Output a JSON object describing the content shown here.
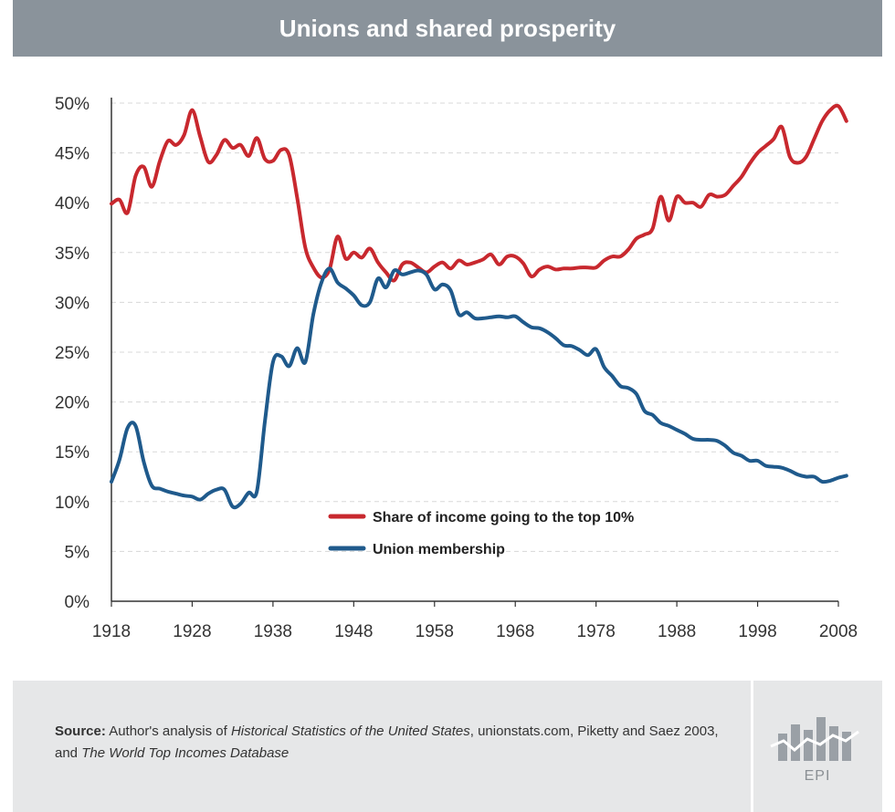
{
  "header": {
    "title": "Unions and shared prosperity"
  },
  "chart_data": {
    "type": "line",
    "title": "Unions and shared prosperity",
    "xlabel": "",
    "ylabel": "",
    "xlim": [
      1918,
      2008
    ],
    "ylim": [
      0,
      50
    ],
    "x_ticks": [
      "1918",
      "1928",
      "1938",
      "1948",
      "1958",
      "1968",
      "1978",
      "1988",
      "1998",
      "2008"
    ],
    "y_ticks": [
      "0%",
      "5%",
      "10%",
      "15%",
      "20%",
      "25%",
      "30%",
      "35%",
      "40%",
      "45%",
      "50%"
    ],
    "grid": "horizontal-dashed",
    "legend_position": "center",
    "series": [
      {
        "name": "Share of income going to the top 10%",
        "color": "#c8282e",
        "points": [
          [
            1918,
            39.9
          ],
          [
            1919,
            40.3
          ],
          [
            1920,
            39.0
          ],
          [
            1921,
            42.7
          ],
          [
            1922,
            43.6
          ],
          [
            1923,
            41.6
          ],
          [
            1924,
            44.2
          ],
          [
            1925,
            46.2
          ],
          [
            1926,
            45.8
          ],
          [
            1927,
            46.8
          ],
          [
            1928,
            49.3
          ],
          [
            1929,
            46.6
          ],
          [
            1930,
            44.1
          ],
          [
            1931,
            44.8
          ],
          [
            1932,
            46.3
          ],
          [
            1933,
            45.5
          ],
          [
            1934,
            45.8
          ],
          [
            1935,
            44.7
          ],
          [
            1936,
            46.5
          ],
          [
            1937,
            44.4
          ],
          [
            1938,
            44.2
          ],
          [
            1939,
            45.3
          ],
          [
            1940,
            44.8
          ],
          [
            1941,
            40.5
          ],
          [
            1942,
            35.5
          ],
          [
            1943,
            33.5
          ],
          [
            1944,
            32.5
          ],
          [
            1945,
            33.3
          ],
          [
            1946,
            36.6
          ],
          [
            1947,
            34.4
          ],
          [
            1948,
            35.0
          ],
          [
            1949,
            34.5
          ],
          [
            1950,
            35.4
          ],
          [
            1951,
            34.0
          ],
          [
            1952,
            33.0
          ],
          [
            1953,
            32.2
          ],
          [
            1954,
            33.8
          ],
          [
            1955,
            34.0
          ],
          [
            1956,
            33.5
          ],
          [
            1957,
            33.0
          ],
          [
            1958,
            33.6
          ],
          [
            1959,
            34.0
          ],
          [
            1960,
            33.4
          ],
          [
            1961,
            34.2
          ],
          [
            1962,
            33.8
          ],
          [
            1963,
            34.0
          ],
          [
            1964,
            34.3
          ],
          [
            1965,
            34.8
          ],
          [
            1966,
            33.8
          ],
          [
            1967,
            34.6
          ],
          [
            1968,
            34.6
          ],
          [
            1969,
            33.9
          ],
          [
            1970,
            32.6
          ],
          [
            1971,
            33.3
          ],
          [
            1972,
            33.6
          ],
          [
            1973,
            33.3
          ],
          [
            1974,
            33.4
          ],
          [
            1975,
            33.4
          ],
          [
            1976,
            33.5
          ],
          [
            1977,
            33.5
          ],
          [
            1978,
            33.5
          ],
          [
            1979,
            34.2
          ],
          [
            1980,
            34.6
          ],
          [
            1981,
            34.6
          ],
          [
            1982,
            35.3
          ],
          [
            1983,
            36.4
          ],
          [
            1984,
            36.8
          ],
          [
            1985,
            37.4
          ],
          [
            1986,
            40.6
          ],
          [
            1987,
            38.2
          ],
          [
            1988,
            40.6
          ],
          [
            1989,
            40.0
          ],
          [
            1990,
            40.0
          ],
          [
            1991,
            39.6
          ],
          [
            1992,
            40.8
          ],
          [
            1993,
            40.6
          ],
          [
            1994,
            40.8
          ],
          [
            1995,
            41.7
          ],
          [
            1996,
            42.6
          ],
          [
            1997,
            43.9
          ],
          [
            1998,
            45.0
          ],
          [
            1999,
            45.7
          ],
          [
            2000,
            46.4
          ],
          [
            2001,
            47.6
          ],
          [
            2002,
            44.6
          ],
          [
            2003,
            44.0
          ],
          [
            2004,
            44.6
          ],
          [
            2005,
            46.4
          ],
          [
            2006,
            48.2
          ],
          [
            2007,
            49.3
          ],
          [
            2008,
            49.7
          ],
          [
            2009,
            48.2
          ]
        ]
      },
      {
        "name": "Union membership",
        "color": "#1f5a8c",
        "points": [
          [
            1918,
            12.0
          ],
          [
            1919,
            14.2
          ],
          [
            1920,
            17.4
          ],
          [
            1921,
            17.6
          ],
          [
            1922,
            14.0
          ],
          [
            1923,
            11.6
          ],
          [
            1924,
            11.3
          ],
          [
            1925,
            11.0
          ],
          [
            1926,
            10.8
          ],
          [
            1927,
            10.6
          ],
          [
            1928,
            10.5
          ],
          [
            1929,
            10.2
          ],
          [
            1930,
            10.8
          ],
          [
            1931,
            11.2
          ],
          [
            1932,
            11.2
          ],
          [
            1933,
            9.5
          ],
          [
            1934,
            9.8
          ],
          [
            1935,
            10.9
          ],
          [
            1936,
            11.0
          ],
          [
            1937,
            18.0
          ],
          [
            1938,
            24.0
          ],
          [
            1939,
            24.6
          ],
          [
            1940,
            23.6
          ],
          [
            1941,
            25.4
          ],
          [
            1942,
            24.0
          ],
          [
            1943,
            28.8
          ],
          [
            1944,
            32.0
          ],
          [
            1945,
            33.4
          ],
          [
            1946,
            32.0
          ],
          [
            1947,
            31.4
          ],
          [
            1948,
            30.7
          ],
          [
            1949,
            29.7
          ],
          [
            1950,
            30.0
          ],
          [
            1951,
            32.4
          ],
          [
            1952,
            31.5
          ],
          [
            1953,
            33.2
          ],
          [
            1954,
            32.8
          ],
          [
            1955,
            33.0
          ],
          [
            1956,
            33.2
          ],
          [
            1957,
            32.8
          ],
          [
            1958,
            31.3
          ],
          [
            1959,
            31.8
          ],
          [
            1960,
            31.2
          ],
          [
            1961,
            28.8
          ],
          [
            1962,
            29.0
          ],
          [
            1963,
            28.4
          ],
          [
            1964,
            28.4
          ],
          [
            1965,
            28.5
          ],
          [
            1966,
            28.6
          ],
          [
            1967,
            28.5
          ],
          [
            1968,
            28.6
          ],
          [
            1969,
            28.0
          ],
          [
            1970,
            27.5
          ],
          [
            1971,
            27.4
          ],
          [
            1972,
            27.0
          ],
          [
            1973,
            26.4
          ],
          [
            1974,
            25.7
          ],
          [
            1975,
            25.6
          ],
          [
            1976,
            25.2
          ],
          [
            1977,
            24.7
          ],
          [
            1978,
            25.3
          ],
          [
            1979,
            23.5
          ],
          [
            1980,
            22.6
          ],
          [
            1981,
            21.6
          ],
          [
            1982,
            21.4
          ],
          [
            1983,
            20.8
          ],
          [
            1984,
            19.1
          ],
          [
            1985,
            18.7
          ],
          [
            1986,
            17.9
          ],
          [
            1987,
            17.6
          ],
          [
            1988,
            17.2
          ],
          [
            1989,
            16.8
          ],
          [
            1990,
            16.3
          ],
          [
            1991,
            16.2
          ],
          [
            1992,
            16.2
          ],
          [
            1993,
            16.1
          ],
          [
            1994,
            15.6
          ],
          [
            1995,
            14.9
          ],
          [
            1996,
            14.6
          ],
          [
            1997,
            14.1
          ],
          [
            1998,
            14.1
          ],
          [
            1999,
            13.6
          ],
          [
            2000,
            13.5
          ],
          [
            2001,
            13.4
          ],
          [
            2002,
            13.1
          ],
          [
            2003,
            12.7
          ],
          [
            2004,
            12.5
          ],
          [
            2005,
            12.5
          ],
          [
            2006,
            12.0
          ],
          [
            2007,
            12.1
          ],
          [
            2008,
            12.4
          ],
          [
            2009,
            12.6
          ]
        ]
      }
    ]
  },
  "footer": {
    "source_label": "Source:",
    "source_text_1": " Author's analysis of ",
    "source_italic_1": "Historical Statistics of the United States",
    "source_text_2": ", unionstats.com, Piketty and Saez 2003, and ",
    "source_italic_2": "The World Top Incomes Database",
    "logo_text": "EPI",
    "panel_color": "#e6e7e8"
  }
}
